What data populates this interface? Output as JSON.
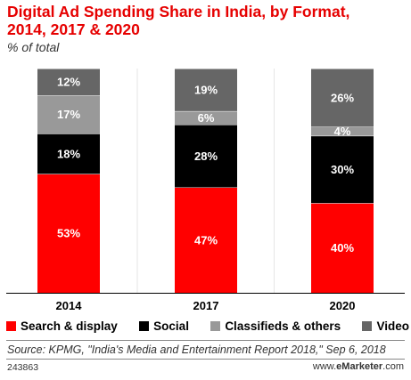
{
  "title": "Digital Ad Spending Share in India, by Format,\n2014, 2017 & 2020",
  "subtitle": "% of total",
  "source": "Source: KPMG, \"India's Media and Entertainment Report 2018,\" Sep 6, 2018",
  "footer": {
    "id": "243863",
    "brand_prefix": "www.",
    "brand_bold": "eMarketer",
    "brand_suffix": ".com"
  },
  "colors": {
    "title": "#e60000",
    "search_display": "#ff0000",
    "social": "#000000",
    "classifieds": "#999999",
    "video": "#666666"
  },
  "chart_data": {
    "type": "bar",
    "stacked": true,
    "categories": [
      "2014",
      "2017",
      "2020"
    ],
    "series": [
      {
        "name": "Search & display",
        "values": [
          53,
          47,
          40
        ],
        "labels": [
          "53%",
          "47%",
          "40%"
        ],
        "color": "#ff0000"
      },
      {
        "name": "Social",
        "values": [
          18,
          28,
          30
        ],
        "labels": [
          "18%",
          "28%",
          "30%"
        ],
        "color": "#000000"
      },
      {
        "name": "Classifieds & others",
        "values": [
          17,
          6,
          4
        ],
        "labels": [
          "17%",
          "6%",
          "4%"
        ],
        "color": "#999999"
      },
      {
        "name": "Video",
        "values": [
          12,
          19,
          26
        ],
        "labels": [
          "12%",
          "19%",
          "26%"
        ],
        "color": "#666666"
      }
    ],
    "ylim": [
      0,
      100
    ],
    "legend_position": "bottom"
  }
}
